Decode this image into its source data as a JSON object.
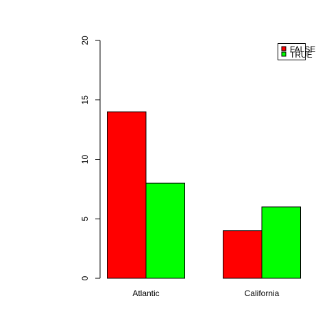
{
  "chart_data": {
    "type": "bar",
    "categories": [
      "Atlantic",
      "California"
    ],
    "series": [
      {
        "name": "FALSE",
        "values": [
          14,
          4
        ],
        "color": "#ff0000"
      },
      {
        "name": "TRUE",
        "values": [
          8,
          6
        ],
        "color": "#00ff00"
      }
    ],
    "title": "",
    "xlabel": "",
    "ylabel": "",
    "ylim": [
      0,
      20
    ],
    "yticks": [
      "0",
      "5",
      "10",
      "15",
      "20"
    ],
    "grid": false,
    "legend_position": "top-right"
  }
}
